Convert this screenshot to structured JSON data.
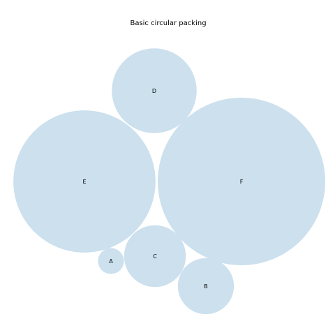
{
  "chart_data": {
    "type": "circle-packing",
    "title": "Basic circular packing",
    "labels": [
      "A",
      "B",
      "C",
      "D",
      "E",
      "F"
    ],
    "values": [
      3,
      14,
      17,
      32,
      90,
      125
    ],
    "bubble_color": "#cce0ee",
    "axes_visible": false,
    "grid": false
  }
}
